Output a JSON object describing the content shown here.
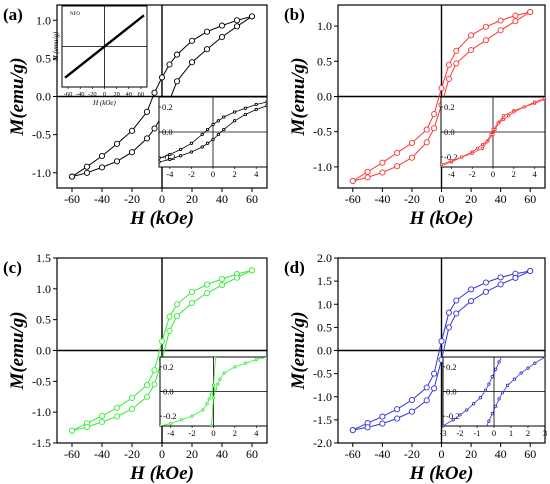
{
  "chart_data": [
    {
      "type": "line",
      "panel_label": "(a)",
      "color": "#000000",
      "xlabel": "H (kOe)",
      "ylabel": "M(emu/g)",
      "xlim": [
        -70,
        70
      ],
      "ylim": [
        -1.2,
        1.2
      ],
      "xticks": [
        -60,
        -40,
        -20,
        0,
        20,
        40,
        60
      ],
      "yticks": [
        -1.0,
        -0.5,
        0.0,
        0.5,
        1.0
      ],
      "yticks_text": [
        "-1.0",
        "-0.5",
        "0.0",
        "0.5",
        "1.0"
      ],
      "series": [
        {
          "branch": "descending",
          "x": [
            60,
            50,
            40,
            30,
            20,
            10,
            5,
            0,
            -5,
            -10,
            -20,
            -30,
            -40,
            -50,
            -60
          ],
          "y": [
            1.05,
            1.0,
            0.93,
            0.85,
            0.73,
            0.55,
            0.42,
            0.25,
            0.05,
            -0.2,
            -0.45,
            -0.62,
            -0.78,
            -0.92,
            -1.05
          ]
        },
        {
          "branch": "ascending",
          "x": [
            -60,
            -50,
            -40,
            -30,
            -20,
            -10,
            -5,
            0,
            5,
            10,
            20,
            30,
            40,
            50,
            60
          ],
          "y": [
            -1.05,
            -1.0,
            -0.93,
            -0.85,
            -0.73,
            -0.55,
            -0.42,
            -0.25,
            -0.05,
            0.2,
            0.45,
            0.62,
            0.78,
            0.92,
            1.05
          ]
        }
      ],
      "insets": [
        {
          "label": "NFO",
          "xlabel": "H (kOe)",
          "ylabel": "M (emu/g)",
          "xlim": [
            -70,
            70
          ],
          "xticks": [
            -60,
            -40,
            -20,
            0,
            20,
            40,
            60
          ],
          "yticks": [],
          "series": [
            {
              "x": [
                -65,
                65
              ],
              "y": [
                -1,
                1
              ]
            }
          ]
        },
        {
          "xlim": [
            -5,
            5
          ],
          "ylim": [
            -0.28,
            0.28
          ],
          "xticks": [
            -4,
            -2,
            0,
            2,
            4
          ],
          "yticks": [
            -0.2,
            0.0,
            0.2
          ],
          "yticks_text": [
            "-0.2",
            "0.0",
            "0.2"
          ],
          "series": [
            {
              "branch": "descending",
              "x": [
                5,
                4,
                3,
                2,
                1,
                0.5,
                0,
                -0.5,
                -1,
                -2,
                -3,
                -4,
                -5
              ],
              "y": [
                0.24,
                0.22,
                0.19,
                0.16,
                0.12,
                0.09,
                0.06,
                0.02,
                -0.02,
                -0.09,
                -0.14,
                -0.18,
                -0.21
              ]
            },
            {
              "branch": "ascending",
              "x": [
                -5,
                -4,
                -3,
                -2,
                -1,
                -0.5,
                0,
                0.5,
                1,
                2,
                3,
                4,
                5
              ],
              "y": [
                -0.24,
                -0.22,
                -0.19,
                -0.16,
                -0.12,
                -0.09,
                -0.06,
                -0.02,
                0.02,
                0.09,
                0.14,
                0.18,
                0.21
              ]
            }
          ]
        }
      ]
    },
    {
      "type": "line",
      "panel_label": "(b)",
      "color": "#ff3333",
      "xlabel": "H (kOe)",
      "ylabel": "M(emu/g)",
      "xlim": [
        -70,
        70
      ],
      "ylim": [
        -1.3,
        1.3
      ],
      "xticks": [
        -60,
        -40,
        -20,
        0,
        20,
        40,
        60
      ],
      "yticks": [
        -1.0,
        -0.5,
        0.0,
        0.5,
        1.0
      ],
      "yticks_text": [
        "-1.0",
        "-0.5",
        "0.0",
        "0.5",
        "1.0"
      ],
      "series": [
        {
          "branch": "descending",
          "x": [
            60,
            50,
            40,
            30,
            20,
            10,
            5,
            0,
            -5,
            -10,
            -20,
            -30,
            -40,
            -50,
            -60
          ],
          "y": [
            1.2,
            1.15,
            1.08,
            0.99,
            0.87,
            0.65,
            0.45,
            0.12,
            -0.25,
            -0.47,
            -0.66,
            -0.8,
            -0.94,
            -1.07,
            -1.2
          ]
        },
        {
          "branch": "ascending",
          "x": [
            -60,
            -50,
            -40,
            -30,
            -20,
            -10,
            -5,
            0,
            5,
            10,
            20,
            30,
            40,
            50,
            60
          ],
          "y": [
            -1.2,
            -1.15,
            -1.08,
            -0.99,
            -0.87,
            -0.65,
            -0.45,
            -0.12,
            0.25,
            0.47,
            0.66,
            0.8,
            0.94,
            1.07,
            1.2
          ]
        }
      ],
      "insets": [
        {
          "xlim": [
            -5,
            5
          ],
          "ylim": [
            -0.28,
            0.28
          ],
          "xticks": [
            -4,
            -2,
            0,
            2,
            4
          ],
          "yticks": [
            -0.2,
            0.0,
            0.2
          ],
          "yticks_text": [
            "-0.2",
            "0.0",
            "0.2"
          ],
          "series": [
            {
              "branch": "descending",
              "x": [
                5,
                4,
                3,
                2,
                1,
                0.6,
                0.2,
                0,
                -0.5,
                -1,
                -1.5,
                -2,
                -3,
                -4,
                -5
              ],
              "y": [
                0.26,
                0.23,
                0.2,
                0.17,
                0.13,
                0.08,
                0.02,
                -0.02,
                -0.07,
                -0.1,
                -0.13,
                -0.16,
                -0.2,
                -0.24,
                -0.27
              ]
            },
            {
              "branch": "ascending",
              "x": [
                -5,
                -4,
                -3,
                -2,
                -1,
                -0.6,
                -0.2,
                0,
                0.5,
                1,
                1.5,
                2,
                3,
                4,
                5
              ],
              "y": [
                -0.26,
                -0.23,
                -0.2,
                -0.17,
                -0.13,
                -0.08,
                -0.02,
                0.02,
                0.07,
                0.1,
                0.13,
                0.16,
                0.2,
                0.24,
                0.27
              ]
            }
          ]
        }
      ]
    },
    {
      "type": "line",
      "panel_label": "(c)",
      "color": "#33ee33",
      "xlabel": "H (kOe)",
      "ylabel": "M(emu/g)",
      "xlim": [
        -70,
        70
      ],
      "ylim": [
        -1.5,
        1.5
      ],
      "xticks": [
        -60,
        -40,
        -20,
        0,
        20,
        40,
        60
      ],
      "yticks": [
        -1.5,
        -1.0,
        -0.5,
        0.0,
        0.5,
        1.0,
        1.5
      ],
      "yticks_text": [
        "-1.5",
        "-1.0",
        "-0.5",
        "0.0",
        "0.5",
        "1.0",
        "1.5"
      ],
      "series": [
        {
          "branch": "descending",
          "x": [
            60,
            50,
            40,
            30,
            20,
            10,
            5,
            0,
            -5,
            -10,
            -20,
            -30,
            -40,
            -50,
            -60
          ],
          "y": [
            1.3,
            1.24,
            1.16,
            1.07,
            0.95,
            0.75,
            0.55,
            0.15,
            -0.32,
            -0.56,
            -0.77,
            -0.93,
            -1.06,
            -1.18,
            -1.3
          ]
        },
        {
          "branch": "ascending",
          "x": [
            -60,
            -50,
            -40,
            -30,
            -20,
            -10,
            -5,
            0,
            5,
            10,
            20,
            30,
            40,
            50,
            60
          ],
          "y": [
            -1.3,
            -1.24,
            -1.16,
            -1.07,
            -0.95,
            -0.75,
            -0.55,
            -0.15,
            0.32,
            0.56,
            0.77,
            0.93,
            1.06,
            1.18,
            1.3
          ]
        }
      ],
      "insets": [
        {
          "xlim": [
            -5,
            5
          ],
          "ylim": [
            -0.28,
            0.28
          ],
          "xticks": [
            -4,
            -2,
            0,
            2,
            4
          ],
          "yticks": [
            -0.2,
            0.0,
            0.2
          ],
          "yticks_text": [
            "-0.2",
            "0.0",
            "0.2"
          ],
          "series": [
            {
              "branch": "descending",
              "x": [
                5,
                4,
                3,
                2,
                1,
                0.6,
                0.4,
                0.2,
                0,
                -0.2
              ],
              "y": [
                0.28,
                0.26,
                0.23,
                0.2,
                0.15,
                0.1,
                0.06,
                0.02,
                -0.05,
                -0.28
              ]
            },
            {
              "branch": "ascending",
              "x": [
                -5,
                -4,
                -3,
                -2,
                -1,
                -0.6,
                -0.4,
                -0.2,
                0,
                0.2
              ],
              "y": [
                -0.28,
                -0.26,
                -0.23,
                -0.2,
                -0.15,
                -0.1,
                -0.06,
                -0.02,
                0.05,
                0.28
              ]
            }
          ]
        }
      ]
    },
    {
      "type": "line",
      "panel_label": "(d)",
      "color": "#3333dd",
      "xlabel": "H (kOe)",
      "ylabel": "M(emu/g)",
      "xlim": [
        -70,
        70
      ],
      "ylim": [
        -2.0,
        2.0
      ],
      "xticks": [
        -60,
        -40,
        -20,
        0,
        20,
        40,
        60
      ],
      "yticks": [
        -2.0,
        -1.5,
        -1.0,
        -0.5,
        0.0,
        0.5,
        1.0,
        1.5,
        2.0
      ],
      "yticks_text": [
        "-2.0",
        "-1.5",
        "-1.0",
        "-0.5",
        "0.0",
        "0.5",
        "1.0",
        "1.5",
        "2.0"
      ],
      "series": [
        {
          "branch": "descending",
          "x": [
            60,
            50,
            40,
            30,
            20,
            10,
            5,
            0,
            -5,
            -10,
            -20,
            -30,
            -40,
            -50,
            -60
          ],
          "y": [
            1.72,
            1.66,
            1.58,
            1.47,
            1.32,
            1.08,
            0.82,
            0.2,
            -0.5,
            -0.8,
            -1.07,
            -1.27,
            -1.43,
            -1.57,
            -1.72
          ]
        },
        {
          "branch": "ascending",
          "x": [
            -60,
            -50,
            -40,
            -30,
            -20,
            -10,
            -5,
            0,
            5,
            10,
            20,
            30,
            40,
            50,
            60
          ],
          "y": [
            -1.72,
            -1.66,
            -1.58,
            -1.47,
            -1.32,
            -1.08,
            -0.82,
            -0.2,
            0.5,
            0.8,
            1.07,
            1.27,
            1.43,
            1.57,
            1.72
          ]
        }
      ],
      "insets": [
        {
          "xlim": [
            -3,
            3
          ],
          "ylim": [
            -0.28,
            0.28
          ],
          "xticks": [
            -3,
            -2,
            -1,
            0,
            1,
            2,
            3
          ],
          "yticks": [
            -0.2,
            0.0,
            0.2
          ],
          "yticks_text": [
            "-0.2",
            "0.0",
            "0.2"
          ],
          "series": [
            {
              "branch": "descending",
              "x": [
                0.5,
                0.3,
                0.1,
                -0.1,
                -0.3,
                -0.5,
                -0.8,
                -1.2,
                -1.6,
                -2,
                -2.4,
                -3
              ],
              "y": [
                0.3,
                0.24,
                0.18,
                0.12,
                0.06,
                0.01,
                -0.05,
                -0.1,
                -0.15,
                -0.19,
                -0.23,
                -0.28
              ]
            },
            {
              "branch": "ascending",
              "x": [
                -0.5,
                -0.3,
                -0.1,
                0.1,
                0.3,
                0.5,
                0.8,
                1.2,
                1.6,
                2,
                2.4,
                3
              ],
              "y": [
                -0.3,
                -0.24,
                -0.18,
                -0.12,
                -0.06,
                -0.01,
                0.05,
                0.1,
                0.15,
                0.19,
                0.23,
                0.28
              ]
            }
          ]
        }
      ]
    }
  ]
}
